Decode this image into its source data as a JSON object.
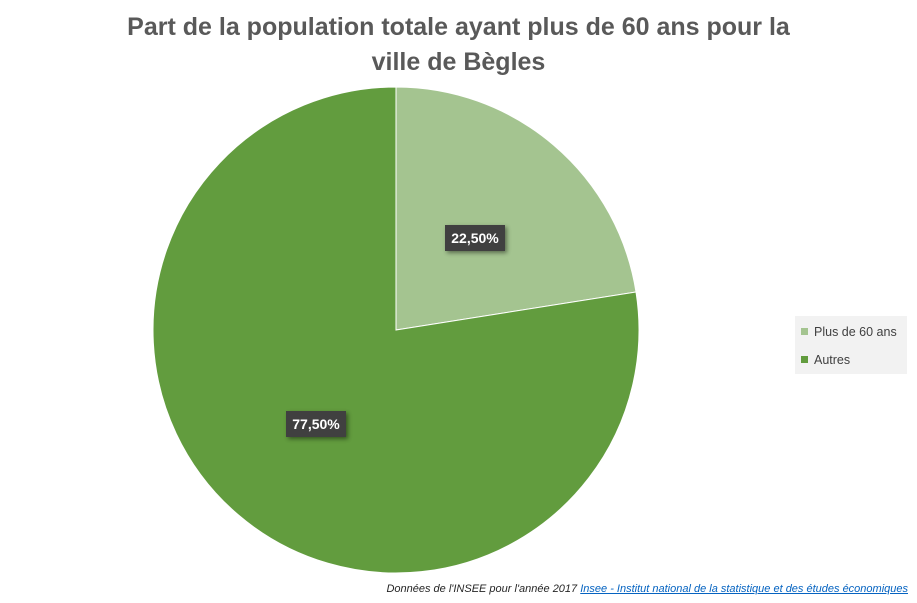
{
  "chart_data": {
    "type": "pie",
    "title_lines": [
      "Part de la population totale ayant plus de 60 ans pour la",
      "ville de Bègles"
    ],
    "labels": [
      "Plus de 60 ans",
      "Autres"
    ],
    "values": [
      22.5,
      77.5
    ],
    "value_labels": [
      "22,50%",
      "77,50%"
    ],
    "colors": [
      "#a4c490",
      "#629c3e"
    ],
    "start_angle_deg": 0,
    "direction": "clockwise",
    "legend_position": "right"
  },
  "source": {
    "note": "Données de l'INSEE pour l'année 2017",
    "link_text": "Insee - Institut national de la statistique et des études économiques"
  }
}
